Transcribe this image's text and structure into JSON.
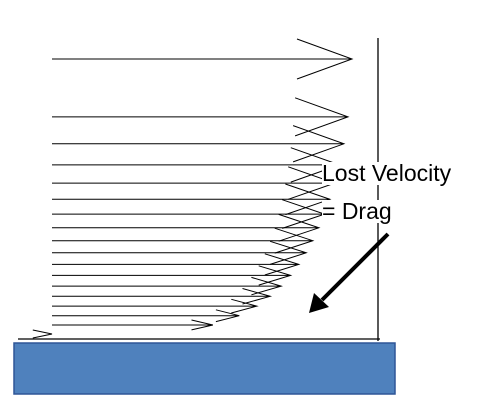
{
  "diagram": {
    "label_line_1": "Lost Velocity",
    "label_line_2": "= Drag",
    "velocity_profile_arrow_count": 18,
    "colors": {
      "plate_fill": "#4f81bd",
      "plate_stroke": "#2f5597",
      "line": "#000000",
      "background": "#ffffff"
    }
  }
}
